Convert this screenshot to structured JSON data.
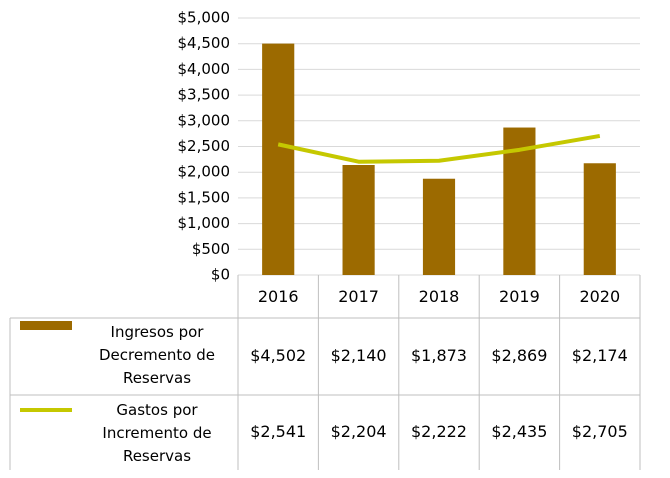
{
  "chart_data": {
    "type": "bar",
    "categories": [
      "2016",
      "2017",
      "2018",
      "2019",
      "2020"
    ],
    "series": [
      {
        "name": "Ingresos por Decremento de Reservas",
        "type": "bar",
        "color": "#9c6a00",
        "values": [
          4502,
          2140,
          1873,
          2869,
          2174
        ],
        "value_labels": [
          "$4,502",
          "$2,140",
          "$1,873",
          "$2,869",
          "$2,174"
        ]
      },
      {
        "name": "Gastos por Incremento de Reservas",
        "type": "line",
        "color": "#c5c800",
        "values": [
          2541,
          2204,
          2222,
          2435,
          2705
        ],
        "value_labels": [
          "$2,541",
          "$2,204",
          "$2,222",
          "$2,435",
          "$2,705"
        ]
      }
    ],
    "ylim": [
      0,
      5000
    ],
    "yticks": [
      {
        "value": 0,
        "label": "$0"
      },
      {
        "value": 500,
        "label": "$500"
      },
      {
        "value": 1000,
        "label": "$1,000"
      },
      {
        "value": 1500,
        "label": "$1,500"
      },
      {
        "value": 2000,
        "label": "$2,000"
      },
      {
        "value": 2500,
        "label": "$2,500"
      },
      {
        "value": 3000,
        "label": "$3,000"
      },
      {
        "value": 3500,
        "label": "$3,500"
      },
      {
        "value": 4000,
        "label": "$4,000"
      },
      {
        "value": 4500,
        "label": "$4,500"
      },
      {
        "value": 5000,
        "label": "$5,000"
      }
    ],
    "grid": true
  }
}
